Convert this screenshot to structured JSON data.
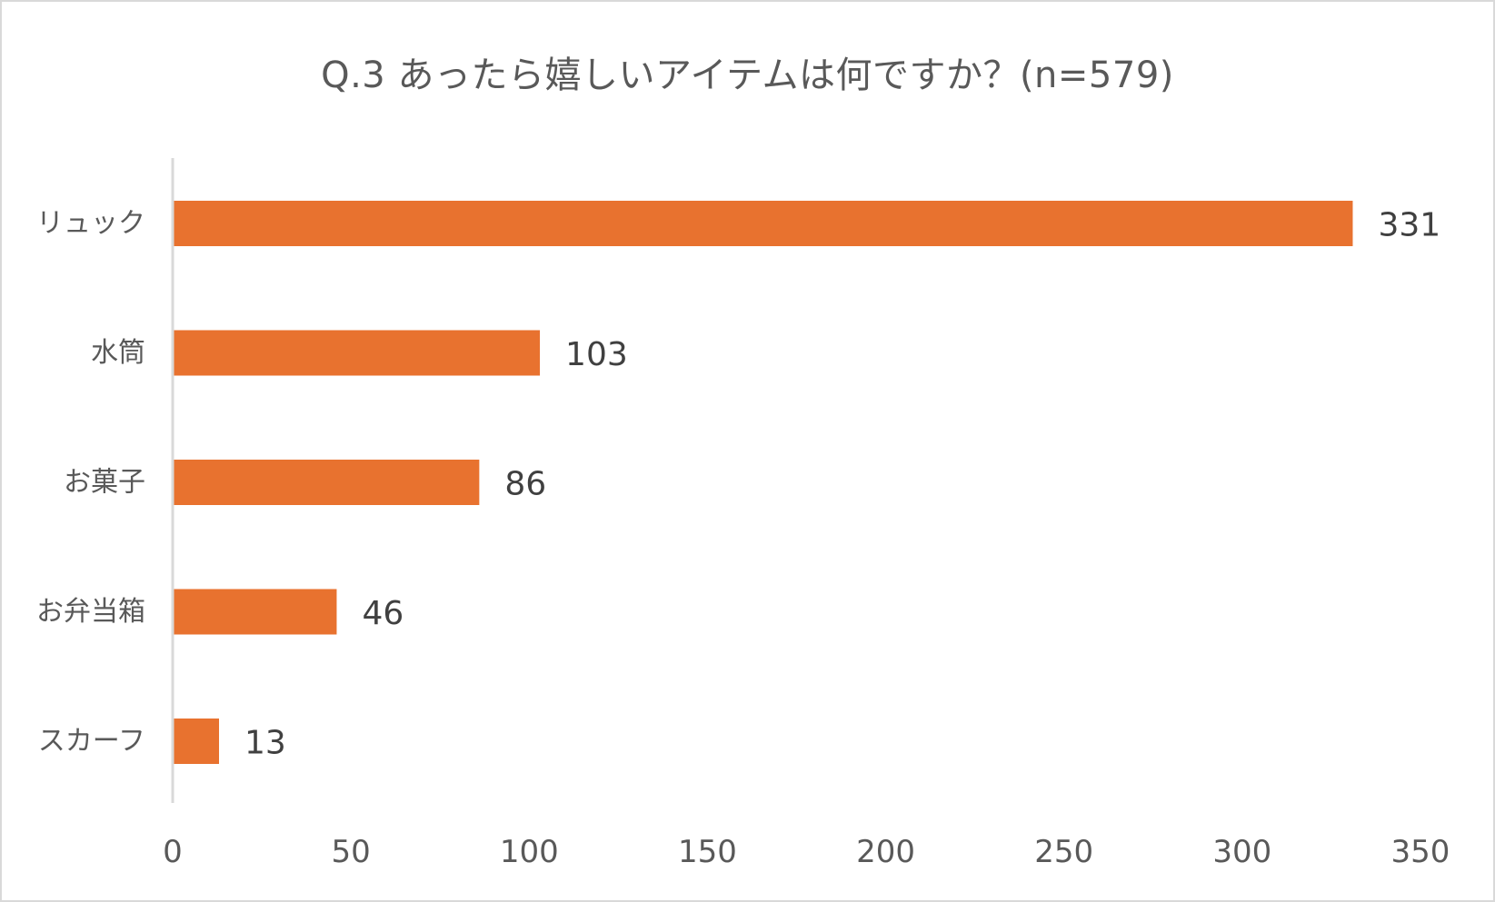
{
  "chart_data": {
    "type": "bar",
    "orientation": "horizontal",
    "title": "Q.3 あったら嬉しいアイテムは何ですか？(n=579)",
    "categories": [
      "リュック",
      "水筒",
      "お菓子",
      "お弁当箱",
      "スカーフ"
    ],
    "values": [
      331,
      103,
      86,
      46,
      13
    ],
    "data_labels": [
      "331",
      "103",
      "86",
      "46",
      "13"
    ],
    "x_ticks": [
      "0",
      "50",
      "100",
      "150",
      "200",
      "250",
      "300",
      "350"
    ],
    "xlim": [
      0,
      350
    ],
    "bar_color": "#E8722F",
    "grid": false,
    "legend": "none"
  }
}
